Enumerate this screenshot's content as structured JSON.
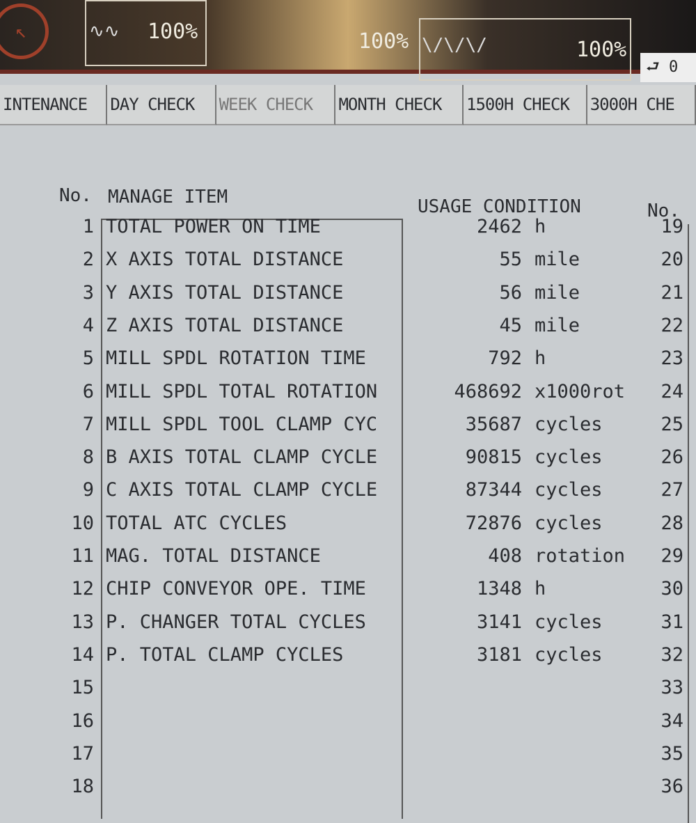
{
  "status": {
    "gauge1": "100%",
    "gauge2": "100%",
    "gauge3": "100%",
    "counter": "0",
    "icon": "tool-return-icon"
  },
  "tabs": [
    "INTENANCE",
    "DAY CHECK",
    "WEEK CHECK",
    "MONTH CHECK",
    "1500H CHECK",
    "3000H CHE"
  ],
  "headers": {
    "no": "No.",
    "item": "MANAGE ITEM",
    "usage": "USAGE CONDITION",
    "no2": "No."
  },
  "rows": [
    {
      "no": "1",
      "item": "TOTAL POWER ON TIME",
      "value": "2462",
      "unit": "h",
      "no2": "19"
    },
    {
      "no": "2",
      "item": "X AXIS TOTAL DISTANCE",
      "value": "55",
      "unit": "mile",
      "no2": "20"
    },
    {
      "no": "3",
      "item": "Y AXIS TOTAL DISTANCE",
      "value": "56",
      "unit": "mile",
      "no2": "21"
    },
    {
      "no": "4",
      "item": "Z AXIS TOTAL DISTANCE",
      "value": "45",
      "unit": "mile",
      "no2": "22"
    },
    {
      "no": "5",
      "item": "MILL SPDL ROTATION TIME",
      "value": "792",
      "unit": "h",
      "no2": "23"
    },
    {
      "no": "6",
      "item": "MILL SPDL TOTAL ROTATION",
      "value": "468692",
      "unit": "x1000rot",
      "no2": "24"
    },
    {
      "no": "7",
      "item": "MILL SPDL TOOL CLAMP CYC",
      "value": "35687",
      "unit": "cycles",
      "no2": "25"
    },
    {
      "no": "8",
      "item": "B AXIS TOTAL CLAMP CYCLE",
      "value": "90815",
      "unit": "cycles",
      "no2": "26"
    },
    {
      "no": "9",
      "item": "C AXIS TOTAL CLAMP CYCLE",
      "value": "87344",
      "unit": "cycles",
      "no2": "27"
    },
    {
      "no": "10",
      "item": "TOTAL ATC CYCLES",
      "value": "72876",
      "unit": "cycles",
      "no2": "28"
    },
    {
      "no": "11",
      "item": "MAG. TOTAL DISTANCE",
      "value": "408",
      "unit": "rotation",
      "no2": "29"
    },
    {
      "no": "12",
      "item": "CHIP CONVEYOR OPE. TIME",
      "value": "1348",
      "unit": "h",
      "no2": "30"
    },
    {
      "no": "13",
      "item": "P. CHANGER TOTAL CYCLES",
      "value": "3141",
      "unit": "cycles",
      "no2": "31"
    },
    {
      "no": "14",
      "item": "P. TOTAL CLAMP CYCLES",
      "value": "3181",
      "unit": "cycles",
      "no2": "32"
    },
    {
      "no": "15",
      "item": "",
      "value": "",
      "unit": "",
      "no2": "33"
    },
    {
      "no": "16",
      "item": "",
      "value": "",
      "unit": "",
      "no2": "34"
    },
    {
      "no": "17",
      "item": "",
      "value": "",
      "unit": "",
      "no2": "35"
    },
    {
      "no": "18",
      "item": "",
      "value": "",
      "unit": "",
      "no2": "36"
    }
  ]
}
